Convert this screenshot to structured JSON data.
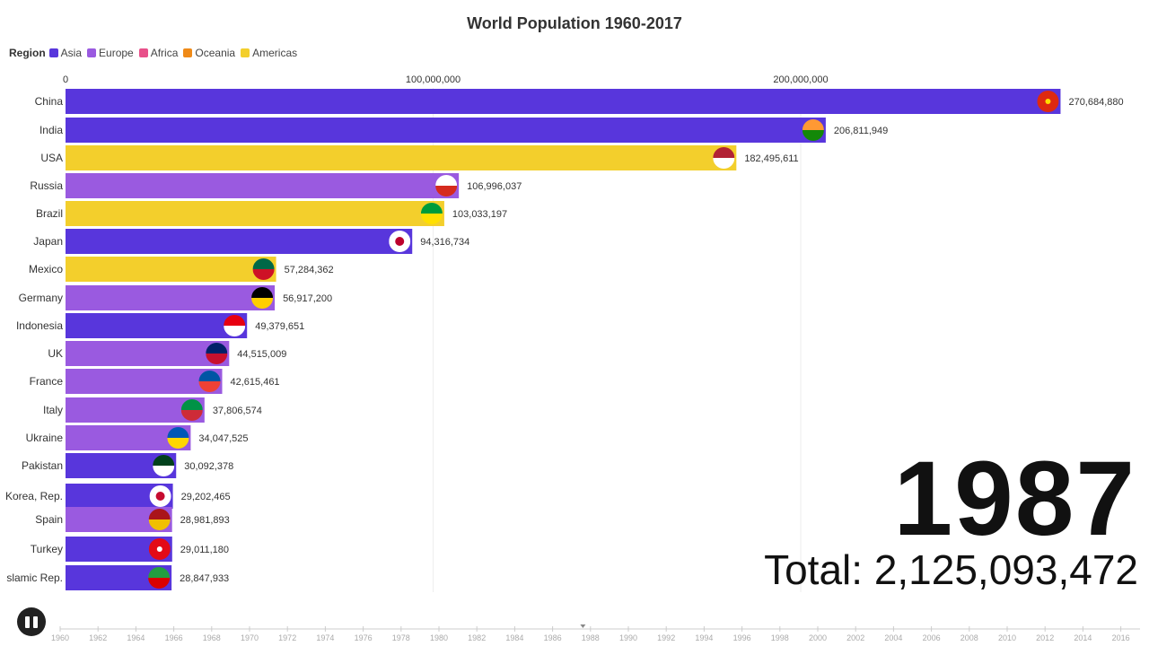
{
  "chart_data": {
    "type": "bar",
    "title": "World Population 1960-2017",
    "legend_title": "Region",
    "legend": [
      {
        "name": "Asia",
        "color": "#5836dc"
      },
      {
        "name": "Europe",
        "color": "#9a5ae0"
      },
      {
        "name": "Africa",
        "color": "#e8508a"
      },
      {
        "name": "Oceania",
        "color": "#ef8a18"
      },
      {
        "name": "Americas",
        "color": "#f3cf2c"
      }
    ],
    "xlim": [
      0,
      270684880
    ],
    "x_ticks": [
      {
        "value": 0,
        "label": "0"
      },
      {
        "value": 100000000,
        "label": "100,000,000"
      },
      {
        "value": 200000000,
        "label": "200,000,000"
      }
    ],
    "bars": [
      {
        "name": "China",
        "region": "Asia",
        "value": 270684880,
        "label": "270,684,880",
        "flag": "china-flag"
      },
      {
        "name": "India",
        "region": "Asia",
        "value": 206811949,
        "label": "206,811,949",
        "flag": "india-flag"
      },
      {
        "name": "USA",
        "region": "Americas",
        "value": 182495611,
        "label": "182,495,611",
        "flag": "usa-flag"
      },
      {
        "name": "Russia",
        "region": "Europe",
        "value": 106996037,
        "label": "106,996,037",
        "flag": "russia-flag"
      },
      {
        "name": "Brazil",
        "region": "Americas",
        "value": 103033197,
        "label": "103,033,197",
        "flag": "brazil-flag"
      },
      {
        "name": "Japan",
        "region": "Asia",
        "value": 94316734,
        "label": "94,316,734",
        "flag": "japan-flag"
      },
      {
        "name": "Mexico",
        "region": "Americas",
        "value": 57284362,
        "label": "57,284,362",
        "flag": "mexico-flag"
      },
      {
        "name": "Germany",
        "region": "Europe",
        "value": 56917200,
        "label": "56,917,200",
        "flag": "germany-flag"
      },
      {
        "name": "Indonesia",
        "region": "Asia",
        "value": 49379651,
        "label": "49,379,651",
        "flag": "indonesia-flag"
      },
      {
        "name": "UK",
        "region": "Europe",
        "value": 44515009,
        "label": "44,515,009",
        "flag": "uk-flag"
      },
      {
        "name": "France",
        "region": "Europe",
        "value": 42615461,
        "label": "42,615,461",
        "flag": "france-flag"
      },
      {
        "name": "Italy",
        "region": "Europe",
        "value": 37806574,
        "label": "37,806,574",
        "flag": "italy-flag"
      },
      {
        "name": "Ukraine",
        "region": "Europe",
        "value": 34047525,
        "label": "34,047,525",
        "flag": "ukraine-flag"
      },
      {
        "name": "Pakistan",
        "region": "Asia",
        "value": 30092378,
        "label": "30,092,378",
        "flag": "pakistan-flag"
      },
      {
        "name": "Korea, Rep.",
        "region": "Asia",
        "value": 29202465,
        "label": "29,202,465",
        "flag": "korea-flag"
      },
      {
        "name": "Spain",
        "region": "Europe",
        "value": 28981893,
        "label": "28,981,893",
        "flag": "spain-flag"
      },
      {
        "name": "Turkey",
        "region": "Asia",
        "value": 29011180,
        "label": "29,011,180",
        "flag": "turkey-flag"
      },
      {
        "name": "slamic Rep.",
        "region": "Asia",
        "value": 28847933,
        "label": "28,847,933",
        "flag": "iran-flag"
      }
    ],
    "current_year": "1987",
    "total": "Total: 2,125,093,472",
    "timeline": {
      "start": 1960,
      "end": 2017,
      "position": 1987.6,
      "tick_labels": [
        "1960",
        "1962",
        "1964",
        "1966",
        "1968",
        "1970",
        "1972",
        "1974",
        "1976",
        "1978",
        "1980",
        "1982",
        "1984",
        "1986",
        "1988",
        "1990",
        "1992",
        "1994",
        "1996",
        "1998",
        "2000",
        "2002",
        "2004",
        "2006",
        "2008",
        "2010",
        "2012",
        "2014",
        "2016"
      ]
    }
  },
  "controls": {
    "pause_icon": "pause-icon"
  }
}
